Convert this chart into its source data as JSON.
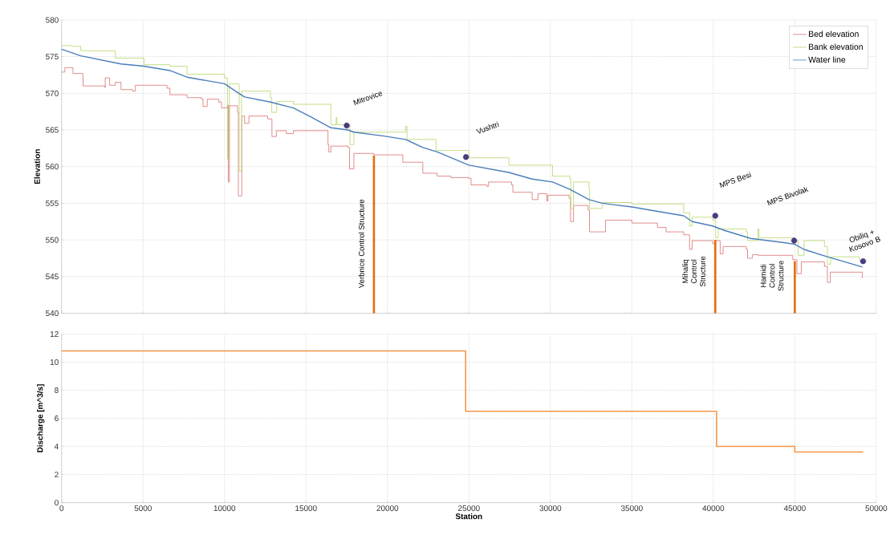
{
  "chart_data": [
    {
      "type": "line",
      "ylabel": "Elevation",
      "xlim": [
        0,
        50000
      ],
      "xticks": [
        0,
        5000,
        10000,
        15000,
        20000,
        25000,
        30000,
        35000,
        40000,
        45000,
        50000
      ],
      "ylim": [
        540,
        580
      ],
      "yticks": [
        540,
        545,
        550,
        555,
        560,
        565,
        570,
        575,
        580
      ],
      "tick_labels": "y",
      "grid": true,
      "legend": "top right",
      "series": [
        {
          "name": "Bed elevation",
          "type": "step",
          "color": "#d9706f",
          "x": [
            0,
            200,
            600,
            700,
            1300,
            1320,
            2650,
            2680,
            2950,
            3300,
            3650,
            4360,
            4530,
            6470,
            6650,
            7700,
            8590,
            8680,
            8940,
            9650,
            9820,
            10180,
            10230,
            10300,
            10800,
            10850,
            10950,
            11060,
            11230,
            11500,
            12650,
            12910,
            13180,
            13800,
            14230,
            16350,
            16400,
            16530,
            17580,
            17670,
            17900,
            17940,
            19170,
            20940,
            22170,
            23050,
            23900,
            25000,
            25130,
            26110,
            26200,
            27620,
            27700,
            28880,
            29240,
            29790,
            29850,
            31150,
            31240,
            31420,
            32310,
            32400,
            33290,
            33380,
            35000,
            36570,
            37100,
            38180,
            38540,
            38700,
            39960,
            40140,
            40420,
            40600,
            42020,
            42100,
            42300,
            42400,
            42740,
            44870,
            45130,
            45400,
            46820,
            47000,
            47180,
            49150
          ],
          "values": [
            572.9,
            573.5,
            573.5,
            572.7,
            572.4,
            571.0,
            570.8,
            572.1,
            571.1,
            571.5,
            570.5,
            570.3,
            571.1,
            570.7,
            569.8,
            569.4,
            569.2,
            568.2,
            569.2,
            568.8,
            568.0,
            568.4,
            557.9,
            568.3,
            567.4,
            556.0,
            556.0,
            566.9,
            565.9,
            566.9,
            566.5,
            564.1,
            564.9,
            564.5,
            564.9,
            563.0,
            562.0,
            562.8,
            562.6,
            559.7,
            559.7,
            561.8,
            561.6,
            560.6,
            559.1,
            558.7,
            558.5,
            558.4,
            557.5,
            557.3,
            557.9,
            557.5,
            556.5,
            555.5,
            556.3,
            555.3,
            556.1,
            555.7,
            552.5,
            554.7,
            554.1,
            551.1,
            551.1,
            552.7,
            552.3,
            551.7,
            551.1,
            550.7,
            548.7,
            549.9,
            549.5,
            549.9,
            548.1,
            549.1,
            548.7,
            547.5,
            547.5,
            548.0,
            547.9,
            547.3,
            545.4,
            547.0,
            546.4,
            544.2,
            545.6,
            544.8
          ]
        },
        {
          "name": "Bank elevation",
          "type": "step",
          "color": "#b5d56a",
          "x": [
            0,
            650,
            1180,
            3300,
            5060,
            6650,
            7700,
            10000,
            10150,
            10180,
            10300,
            10880,
            10900,
            11000,
            11050,
            12820,
            12900,
            13100,
            13200,
            14230,
            16530,
            16850,
            16900,
            17580,
            17700,
            17900,
            17940,
            21050,
            21110,
            21200,
            22980,
            25000,
            27450,
            30130,
            31200,
            31250,
            31420,
            32370,
            32400,
            33180,
            35000,
            38180,
            38450,
            38540,
            38700,
            39960,
            40140,
            40300,
            42020,
            42100,
            42600,
            42740,
            42800,
            45000,
            45200,
            45570,
            46820,
            47000,
            47200,
            48970
          ],
          "values": [
            576.5,
            576.4,
            575.8,
            574.8,
            573.9,
            573.7,
            572.6,
            572.1,
            572.0,
            561.0,
            571.3,
            571.1,
            559.4,
            559.4,
            570.3,
            569.4,
            567.4,
            567.4,
            568.9,
            568.5,
            565.7,
            566.7,
            565.7,
            565.7,
            563.0,
            563.0,
            564.7,
            564.7,
            565.5,
            563.7,
            562.2,
            561.2,
            560.2,
            558.7,
            558.3,
            554.3,
            557.9,
            557.1,
            554.3,
            555.1,
            554.9,
            553.7,
            553.7,
            551.9,
            553.1,
            552.7,
            550.3,
            551.5,
            551.1,
            549.9,
            549.9,
            551.5,
            550.3,
            549.9,
            547.9,
            549.9,
            549.1,
            546.7,
            547.7,
            547.1
          ]
        },
        {
          "name": "Water line",
          "type": "line",
          "color": "#4a7ebb",
          "x": [
            0,
            1180,
            3650,
            5060,
            6650,
            7700,
            10000,
            10880,
            11230,
            12820,
            14230,
            15290,
            16530,
            17580,
            17940,
            19700,
            21110,
            22170,
            23050,
            25000,
            27450,
            28880,
            30130,
            31200,
            32370,
            33180,
            35000,
            36570,
            38180,
            38710,
            39960,
            40680,
            42290,
            44440,
            45000,
            45570,
            47000,
            49150
          ],
          "values": [
            576.0,
            575.1,
            574.0,
            573.7,
            573.1,
            572.2,
            571.3,
            570.0,
            569.5,
            568.8,
            568.0,
            566.8,
            565.3,
            565.0,
            564.7,
            564.2,
            563.7,
            562.6,
            562.0,
            560.2,
            559.2,
            558.3,
            557.9,
            556.9,
            555.5,
            555.0,
            554.5,
            553.9,
            553.3,
            552.5,
            551.9,
            551.3,
            550.2,
            549.6,
            549.4,
            548.7,
            547.7,
            546.3
          ]
        },
        {
          "type": "scatter",
          "marker": "circle",
          "color": "#4b3b7e",
          "x": [
            17500,
            24820,
            40120,
            44960,
            49190
          ],
          "values": [
            565.6,
            561.3,
            553.3,
            549.9,
            547.1
          ]
        },
        {
          "type": "bar",
          "color": "#e46c0a",
          "x": [
            19170,
            40120,
            45000
          ],
          "base": [
            540,
            540,
            540
          ],
          "values": [
            21.5,
            10.0,
            7.1
          ]
        }
      ],
      "annotations": [
        "Mitrovice",
        "Vushtri",
        "MPS Besi",
        "MPS Bivolak",
        "Obiliq + Kosovo B",
        "Verbnice Control Structure",
        "Mihaliq Control Structure",
        "Hamidi Control Structure"
      ]
    },
    {
      "type": "step",
      "xlabel": "Station",
      "ylabel": "Discharge [m^3/s]",
      "xlim": [
        0,
        50000
      ],
      "xticks": [
        0,
        5000,
        10000,
        15000,
        20000,
        25000,
        30000,
        35000,
        40000,
        45000,
        50000
      ],
      "ylim": [
        0,
        12
      ],
      "yticks": [
        0,
        2,
        4,
        6,
        8,
        10,
        12
      ],
      "grid": true,
      "series": [
        {
          "color": "#f79646",
          "x": [
            0,
            24800,
            40200,
            45000,
            49200
          ],
          "values": [
            10.8,
            6.5,
            4.0,
            3.6,
            3.6
          ]
        }
      ]
    }
  ]
}
